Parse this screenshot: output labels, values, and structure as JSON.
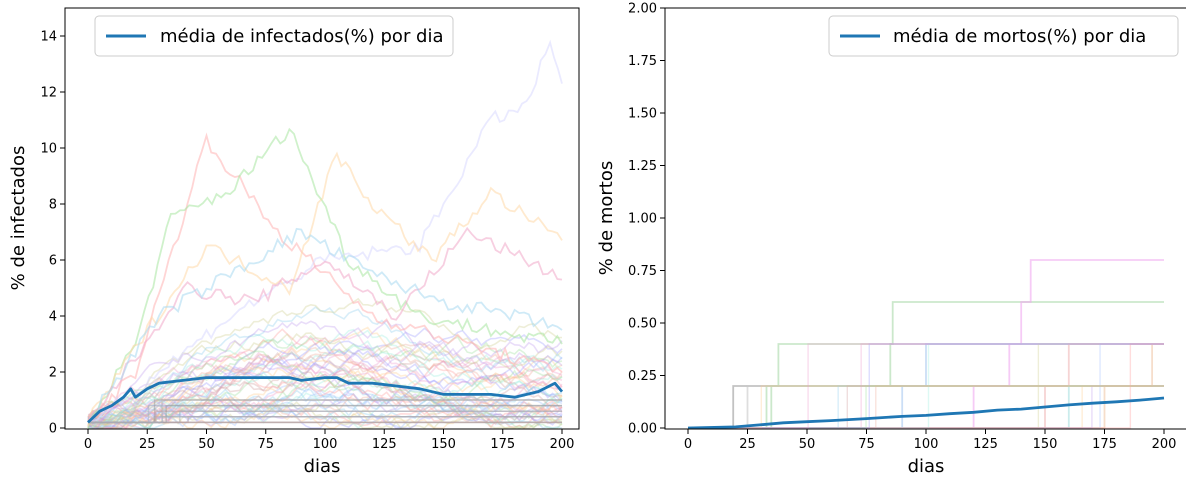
{
  "chart_data": [
    {
      "type": "line",
      "title": "",
      "xlabel": "dias",
      "ylabel": "% de infectados",
      "xlim": [
        0,
        200
      ],
      "ylim": [
        0,
        15
      ],
      "x_ticks": [
        0,
        25,
        50,
        75,
        100,
        125,
        150,
        175,
        200
      ],
      "x_tick_labels": [
        "0",
        "25",
        "50",
        "75",
        "100",
        "125",
        "150",
        "175",
        "200"
      ],
      "y_ticks": [
        0,
        2,
        4,
        6,
        8,
        10,
        12,
        14
      ],
      "y_tick_labels": [
        "0",
        "2",
        "4",
        "6",
        "8",
        "10",
        "12",
        "14"
      ],
      "legend": {
        "position": "top-left",
        "entries": [
          "média de infectados(%) por dia"
        ]
      },
      "grid": false,
      "series": [
        {
          "name": "média de infectados(%) por dia",
          "color": "#1f77b4",
          "x": [
            0,
            5,
            10,
            15,
            18,
            20,
            25,
            30,
            40,
            50,
            60,
            75,
            85,
            90,
            100,
            105,
            110,
            120,
            130,
            140,
            150,
            160,
            170,
            180,
            190,
            197,
            200
          ],
          "y": [
            0.2,
            0.6,
            0.8,
            1.1,
            1.4,
            1.1,
            1.4,
            1.6,
            1.7,
            1.8,
            1.8,
            1.8,
            1.8,
            1.7,
            1.8,
            1.8,
            1.6,
            1.6,
            1.5,
            1.4,
            1.2,
            1.2,
            1.2,
            1.1,
            1.3,
            1.6,
            1.3
          ]
        }
      ],
      "background_runs": {
        "description_count": 60,
        "peaks": [
          {
            "x": [
              0,
              20,
              50,
              80,
              120,
              160,
              200
            ],
            "y": [
              0.2,
              2.0,
              10.3,
              7.0,
              4.0,
              3.0,
              2.0
            ],
            "color": "#ffb3b3"
          },
          {
            "x": [
              0,
              20,
              35,
              60,
              85,
              110,
              140,
              200
            ],
            "y": [
              0.2,
              3.0,
              7.5,
              8.5,
              10.7,
              6.0,
              4.0,
              3.0
            ],
            "color": "#a8e6a1"
          },
          {
            "x": [
              0,
              30,
              60,
              100,
              140,
              170,
              185,
              195,
              200
            ],
            "y": [
              0.2,
              2.0,
              4.0,
              6.0,
              6.5,
              11.0,
              11.5,
              13.8,
              12.3
            ],
            "color": "#d9d9ff"
          },
          {
            "x": [
              0,
              25,
              50,
              85,
              105,
              120,
              145,
              170,
              200
            ],
            "y": [
              0.2,
              3.5,
              6.5,
              5.0,
              9.8,
              8.0,
              6.0,
              8.4,
              6.7
            ],
            "color": "#ffd9a8"
          },
          {
            "x": [
              0,
              20,
              40,
              70,
              100,
              130,
              160,
              190,
              200
            ],
            "y": [
              0.2,
              2.5,
              5.0,
              4.5,
              6.0,
              4.0,
              7.0,
              5.8,
              5.3
            ],
            "color": "#f0a8c8"
          },
          {
            "x": [
              0,
              30,
              60,
              90,
              120,
              150,
              180,
              200
            ],
            "y": [
              0.2,
              4.0,
              5.5,
              7.0,
              5.5,
              4.5,
              4.0,
              3.5
            ],
            "color": "#a8d8f0"
          }
        ]
      }
    },
    {
      "type": "line",
      "title": "",
      "xlabel": "dias",
      "ylabel": "% de mortos",
      "xlim": [
        0,
        200
      ],
      "ylim": [
        0,
        2
      ],
      "x_ticks": [
        0,
        25,
        50,
        75,
        100,
        125,
        150,
        175,
        200
      ],
      "x_tick_labels": [
        "0",
        "25",
        "50",
        "75",
        "100",
        "125",
        "150",
        "175",
        "200"
      ],
      "y_ticks": [
        0,
        0.25,
        0.5,
        0.75,
        1.0,
        1.25,
        1.5,
        1.75,
        2.0
      ],
      "y_tick_labels": [
        "0.00",
        "0.25",
        "0.50",
        "0.75",
        "1.00",
        "1.25",
        "1.50",
        "1.75",
        "2.00"
      ],
      "legend": {
        "position": "top-right",
        "entries": [
          "média de mortos(%) por dia"
        ]
      },
      "grid": false,
      "series": [
        {
          "name": "média de mortos(%) por dia",
          "color": "#1f77b4",
          "x": [
            0,
            20,
            30,
            40,
            50,
            60,
            75,
            90,
            100,
            110,
            120,
            130,
            140,
            150,
            160,
            170,
            180,
            190,
            200
          ],
          "y": [
            0.0,
            0.005,
            0.015,
            0.025,
            0.03,
            0.035,
            0.045,
            0.055,
            0.06,
            0.068,
            0.075,
            0.085,
            0.09,
            0.1,
            0.11,
            0.118,
            0.125,
            0.133,
            0.143
          ]
        }
      ],
      "step_runs": [
        {
          "steps": [
            [
              0,
              0
            ],
            [
              19,
              0.2
            ],
            [
              200,
              0.2
            ]
          ],
          "color": "#999999"
        },
        {
          "steps": [
            [
              0,
              0
            ],
            [
              33,
              0.2
            ],
            [
              38,
              0.4
            ],
            [
              200,
              0.4
            ]
          ],
          "color": "#a8d8a8"
        },
        {
          "steps": [
            [
              0,
              0
            ],
            [
              35,
              0.2
            ],
            [
              85,
              0.4
            ],
            [
              86,
              0.6
            ],
            [
              200,
              0.6
            ]
          ],
          "color": "#a8d8a8"
        },
        {
          "steps": [
            [
              0,
              0
            ],
            [
              120,
              0.2
            ],
            [
              135,
              0.4
            ],
            [
              140,
              0.6
            ],
            [
              144,
              0.8
            ],
            [
              200,
              0.8
            ]
          ],
          "color": "#f0a8f0"
        },
        {
          "steps": [
            [
              0,
              0
            ],
            [
              90,
              0.2
            ],
            [
              100,
              0.4
            ],
            [
              200,
              0.4
            ]
          ],
          "color": "#a8c8f0"
        },
        {
          "steps": [
            [
              0,
              0
            ],
            [
              150,
              0.2
            ],
            [
              160,
              0.4
            ],
            [
              200,
              0.4
            ]
          ],
          "color": "#f0b8b8"
        },
        {
          "steps": [
            [
              0,
              0
            ],
            [
              25,
              0.2
            ],
            [
              200,
              0.2
            ]
          ],
          "color": "#c8c8c8"
        },
        {
          "steps": [
            [
              0,
              0
            ],
            [
              160,
              0.2
            ],
            [
              200,
              0.2
            ]
          ],
          "color": "#a8e0e0"
        },
        {
          "steps": [
            [
              0,
              0
            ],
            [
              175,
              0.2
            ],
            [
              195,
              0.4
            ],
            [
              200,
              0.4
            ]
          ],
          "color": "#f0c8a8"
        }
      ]
    }
  ]
}
